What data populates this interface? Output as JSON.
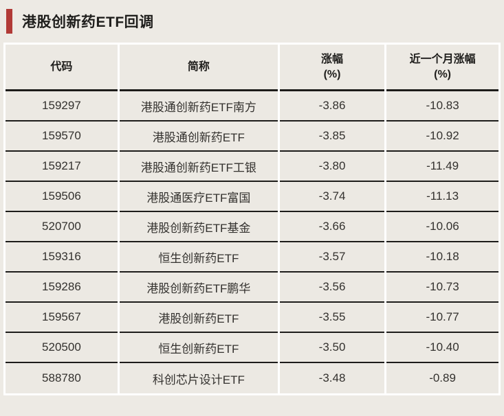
{
  "title": "港股创新药ETF回调",
  "colors": {
    "background": "#edeae4",
    "cell": "#ece9e3",
    "gap": "#ffffff",
    "line": "#1d1c1a",
    "accent": "#b13a36",
    "text": "#33312e",
    "title_text": "#1f1e1c"
  },
  "table": {
    "columns": [
      {
        "key": "code",
        "label": "代码",
        "unit": ""
      },
      {
        "key": "name",
        "label": "简称",
        "unit": ""
      },
      {
        "key": "change",
        "label": "涨幅",
        "unit": "(%)"
      },
      {
        "key": "month",
        "label": "近一个月涨幅",
        "unit": "(%)"
      }
    ],
    "rows": [
      [
        "159297",
        "港股通创新药ETF南方",
        "-3.86",
        "-10.83"
      ],
      [
        "159570",
        "港股通创新药ETF",
        "-3.85",
        "-10.92"
      ],
      [
        "159217",
        "港股通创新药ETF工银",
        "-3.80",
        "-11.49"
      ],
      [
        "159506",
        "港股通医疗ETF富国",
        "-3.74",
        "-11.13"
      ],
      [
        "520700",
        "港股创新药ETF基金",
        "-3.66",
        "-10.06"
      ],
      [
        "159316",
        "恒生创新药ETF",
        "-3.57",
        "-10.18"
      ],
      [
        "159286",
        "港股创新药ETF鹏华",
        "-3.56",
        "-10.73"
      ],
      [
        "159567",
        "港股创新药ETF",
        "-3.55",
        "-10.77"
      ],
      [
        "520500",
        "恒生创新药ETF",
        "-3.50",
        "-10.40"
      ],
      [
        "588780",
        "科创芯片设计ETF",
        "-3.48",
        "-0.89"
      ]
    ]
  },
  "chart_data": {
    "type": "table",
    "title": "港股创新药ETF回调",
    "columns": [
      "代码",
      "简称",
      "涨幅(%)",
      "近一个月涨幅(%)"
    ],
    "rows": [
      [
        "159297",
        "港股通创新药ETF南方",
        -3.86,
        -10.83
      ],
      [
        "159570",
        "港股通创新药ETF",
        -3.85,
        -10.92
      ],
      [
        "159217",
        "港股通创新药ETF工银",
        -3.8,
        -11.49
      ],
      [
        "159506",
        "港股通医疗ETF富国",
        -3.74,
        -11.13
      ],
      [
        "520700",
        "港股创新药ETF基金",
        -3.66,
        -10.06
      ],
      [
        "159316",
        "恒生创新药ETF",
        -3.57,
        -10.18
      ],
      [
        "159286",
        "港股创新药ETF鹏华",
        -3.56,
        -10.73
      ],
      [
        "159567",
        "港股创新药ETF",
        -3.55,
        -10.77
      ],
      [
        "520500",
        "恒生创新药ETF",
        -3.5,
        -10.4
      ],
      [
        "588780",
        "科创芯片设计ETF",
        -3.48,
        -0.89
      ]
    ]
  }
}
